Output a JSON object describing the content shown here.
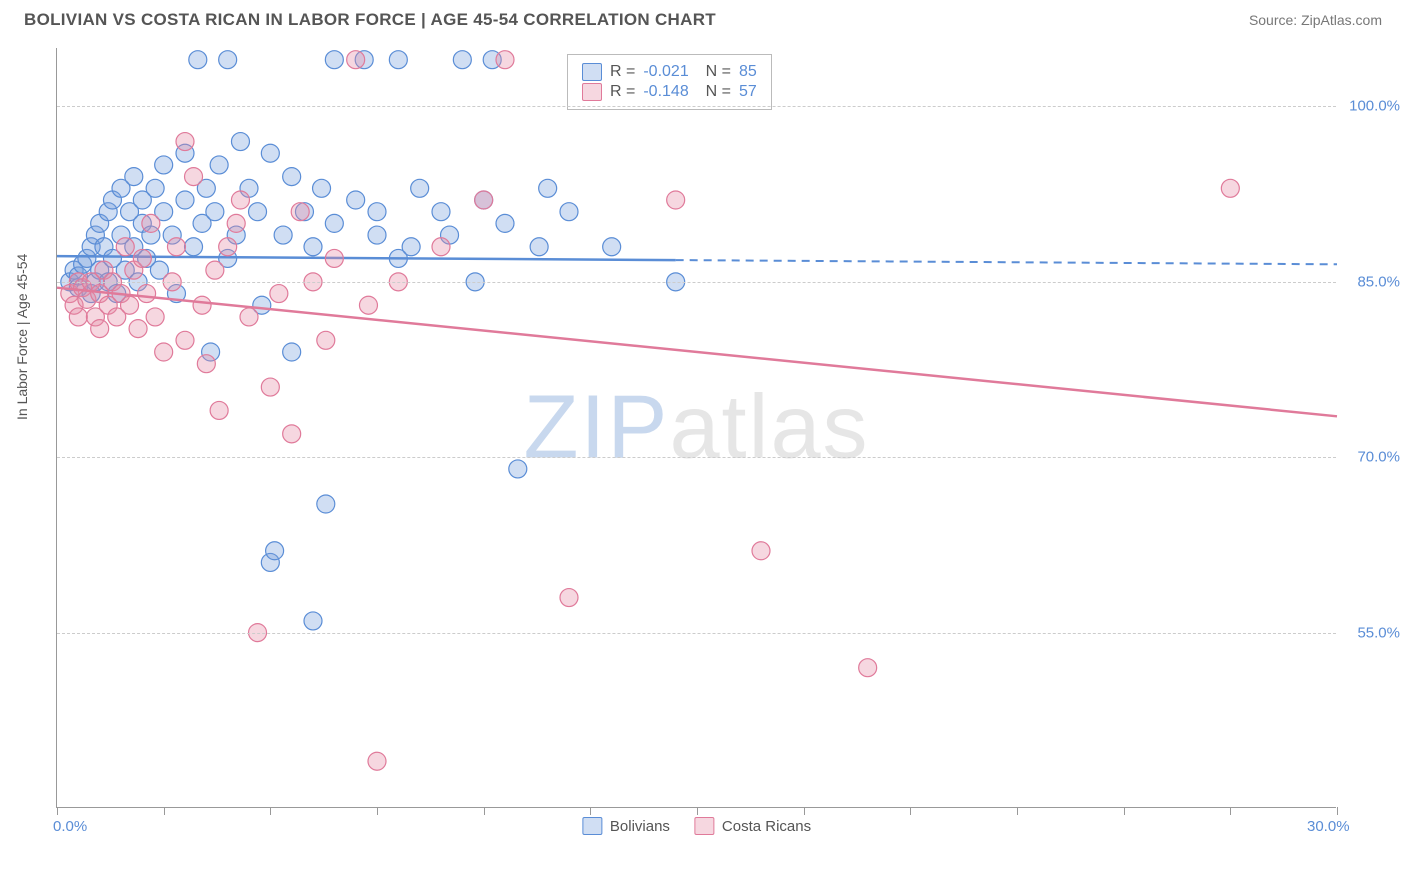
{
  "header": {
    "title": "BOLIVIAN VS COSTA RICAN IN LABOR FORCE | AGE 45-54 CORRELATION CHART",
    "source": "Source: ZipAtlas.com"
  },
  "chart": {
    "type": "scatter",
    "ylabel": "In Labor Force | Age 45-54",
    "xlim": [
      0,
      30
    ],
    "ylim": [
      40,
      105
    ],
    "xtick_positions": [
      0,
      2.5,
      5,
      7.5,
      10,
      12.5,
      15,
      17.5,
      20,
      22.5,
      25,
      27.5,
      30
    ],
    "x_axis_labels": [
      {
        "pos": 0,
        "text": "0.0%"
      },
      {
        "pos": 30,
        "text": "30.0%"
      }
    ],
    "y_gridlines": [
      55,
      70,
      85,
      100
    ],
    "y_axis_labels": [
      {
        "pos": 55,
        "text": "55.0%"
      },
      {
        "pos": 70,
        "text": "70.0%"
      },
      {
        "pos": 85,
        "text": "85.0%"
      },
      {
        "pos": 100,
        "text": "100.0%"
      }
    ],
    "background_color": "#ffffff",
    "grid_color": "#cccccc",
    "marker_radius": 9,
    "marker_opacity": 0.35,
    "series": [
      {
        "name": "Bolivians",
        "color_fill": "rgba(120,160,220,0.35)",
        "color_stroke": "#5a8dd6",
        "regression": {
          "R": -0.021,
          "N": 85,
          "y_at_x0": 87.2,
          "y_at_xmax": 86.5,
          "solid_until_x": 14.5
        },
        "points": [
          [
            0.3,
            85
          ],
          [
            0.4,
            86
          ],
          [
            0.5,
            84.5
          ],
          [
            0.5,
            85.5
          ],
          [
            0.6,
            86.5
          ],
          [
            0.7,
            87
          ],
          [
            0.8,
            84
          ],
          [
            0.8,
            88
          ],
          [
            0.9,
            85
          ],
          [
            0.9,
            89
          ],
          [
            1.0,
            90
          ],
          [
            1.0,
            86
          ],
          [
            1.1,
            88
          ],
          [
            1.2,
            91
          ],
          [
            1.2,
            85
          ],
          [
            1.3,
            87
          ],
          [
            1.3,
            92
          ],
          [
            1.4,
            84
          ],
          [
            1.5,
            89
          ],
          [
            1.5,
            93
          ],
          [
            1.6,
            86
          ],
          [
            1.7,
            91
          ],
          [
            1.8,
            88
          ],
          [
            1.8,
            94
          ],
          [
            1.9,
            85
          ],
          [
            2.0,
            90
          ],
          [
            2.0,
            92
          ],
          [
            2.1,
            87
          ],
          [
            2.2,
            89
          ],
          [
            2.3,
            93
          ],
          [
            2.4,
            86
          ],
          [
            2.5,
            91
          ],
          [
            2.5,
            95
          ],
          [
            2.7,
            89
          ],
          [
            2.8,
            84
          ],
          [
            3.0,
            92
          ],
          [
            3.0,
            96
          ],
          [
            3.2,
            88
          ],
          [
            3.3,
            104
          ],
          [
            3.4,
            90
          ],
          [
            3.5,
            93
          ],
          [
            3.6,
            79
          ],
          [
            3.7,
            91
          ],
          [
            3.8,
            95
          ],
          [
            4.0,
            87
          ],
          [
            4.0,
            104
          ],
          [
            4.2,
            89
          ],
          [
            4.3,
            97
          ],
          [
            4.5,
            93
          ],
          [
            4.7,
            91
          ],
          [
            4.8,
            83
          ],
          [
            5.0,
            96
          ],
          [
            5.0,
            61
          ],
          [
            5.1,
            62
          ],
          [
            5.3,
            89
          ],
          [
            5.5,
            94
          ],
          [
            5.5,
            79
          ],
          [
            5.8,
            91
          ],
          [
            6.0,
            88
          ],
          [
            6.0,
            56
          ],
          [
            6.2,
            93
          ],
          [
            6.3,
            66
          ],
          [
            6.5,
            90
          ],
          [
            6.5,
            104
          ],
          [
            7.0,
            92
          ],
          [
            7.2,
            104
          ],
          [
            7.5,
            89
          ],
          [
            7.5,
            91
          ],
          [
            8.0,
            87
          ],
          [
            8.0,
            104
          ],
          [
            8.3,
            88
          ],
          [
            8.5,
            93
          ],
          [
            9.0,
            91
          ],
          [
            9.2,
            89
          ],
          [
            9.5,
            104
          ],
          [
            9.8,
            85
          ],
          [
            10.0,
            92
          ],
          [
            10.2,
            104
          ],
          [
            10.5,
            90
          ],
          [
            10.8,
            69
          ],
          [
            11.3,
            88
          ],
          [
            11.5,
            93
          ],
          [
            12.0,
            91
          ],
          [
            13.0,
            88
          ],
          [
            14.5,
            85
          ]
        ]
      },
      {
        "name": "Costa Ricans",
        "color_fill": "rgba(230,140,165,0.35)",
        "color_stroke": "#e07a9a",
        "regression": {
          "R": -0.148,
          "N": 57,
          "y_at_x0": 84.5,
          "y_at_xmax": 73.5,
          "solid_until_x": 30
        },
        "points": [
          [
            0.3,
            84
          ],
          [
            0.4,
            83
          ],
          [
            0.5,
            85
          ],
          [
            0.5,
            82
          ],
          [
            0.6,
            84.5
          ],
          [
            0.7,
            83.5
          ],
          [
            0.8,
            85
          ],
          [
            0.9,
            82
          ],
          [
            1.0,
            84
          ],
          [
            1.0,
            81
          ],
          [
            1.1,
            86
          ],
          [
            1.2,
            83
          ],
          [
            1.3,
            85
          ],
          [
            1.4,
            82
          ],
          [
            1.5,
            84
          ],
          [
            1.6,
            88
          ],
          [
            1.7,
            83
          ],
          [
            1.8,
            86
          ],
          [
            1.9,
            81
          ],
          [
            2.0,
            87
          ],
          [
            2.1,
            84
          ],
          [
            2.2,
            90
          ],
          [
            2.3,
            82
          ],
          [
            2.5,
            79
          ],
          [
            2.7,
            85
          ],
          [
            2.8,
            88
          ],
          [
            3.0,
            80
          ],
          [
            3.0,
            97
          ],
          [
            3.2,
            94
          ],
          [
            3.4,
            83
          ],
          [
            3.5,
            78
          ],
          [
            3.7,
            86
          ],
          [
            3.8,
            74
          ],
          [
            4.0,
            88
          ],
          [
            4.2,
            90
          ],
          [
            4.3,
            92
          ],
          [
            4.5,
            82
          ],
          [
            4.7,
            55
          ],
          [
            5.0,
            76
          ],
          [
            5.2,
            84
          ],
          [
            5.5,
            72
          ],
          [
            5.7,
            91
          ],
          [
            6.0,
            85
          ],
          [
            6.3,
            80
          ],
          [
            6.5,
            87
          ],
          [
            7.0,
            104
          ],
          [
            7.3,
            83
          ],
          [
            7.5,
            44
          ],
          [
            8.0,
            85
          ],
          [
            9.0,
            88
          ],
          [
            10.0,
            92
          ],
          [
            10.5,
            104
          ],
          [
            12.0,
            58
          ],
          [
            14.5,
            92
          ],
          [
            16.5,
            62
          ],
          [
            19.0,
            52
          ],
          [
            27.5,
            93
          ]
        ]
      }
    ],
    "legend_top": [
      {
        "swatch": "blue",
        "r": "-0.021",
        "n": "85"
      },
      {
        "swatch": "pink",
        "r": "-0.148",
        "n": "57"
      }
    ],
    "legend_bottom": [
      {
        "swatch": "blue",
        "label": "Bolivians"
      },
      {
        "swatch": "pink",
        "label": "Costa Ricans"
      }
    ],
    "watermark": {
      "zip": "ZIP",
      "atlas": "atlas"
    }
  }
}
